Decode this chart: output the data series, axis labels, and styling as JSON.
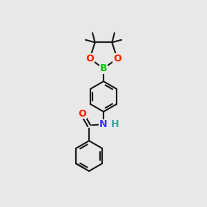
{
  "bg_color": "#e8e8e8",
  "bond_color": "#1a1a1a",
  "bond_lw": 1.6,
  "atom_colors": {
    "B": "#00cc00",
    "O": "#ff2200",
    "N": "#3333ff",
    "H": "#33aaaa",
    "C": "#1a1a1a"
  },
  "font_size_atom": 10,
  "font_size_small": 9
}
